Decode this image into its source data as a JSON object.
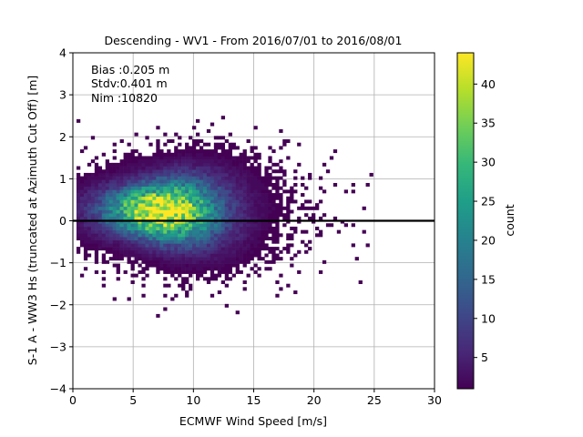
{
  "chart_data": {
    "type": "heatmap",
    "title": "Descending - WV1 - From 2016/07/01 to 2016/08/01",
    "xlabel": "ECMWF Wind Speed [m/s]",
    "ylabel": "S-1 A - WW3 Hs (truncated at Azimuth Cut Off) [m]",
    "xlim": [
      0,
      30
    ],
    "ylim": [
      -4,
      4
    ],
    "xticks": [
      "0",
      "5",
      "10",
      "15",
      "20",
      "25",
      "30"
    ],
    "yticks": [
      "−4",
      "−3",
      "−2",
      "−1",
      "0",
      "1",
      "2",
      "3",
      "4"
    ],
    "grid": true,
    "reference_line_y": 0,
    "annotations": [
      "Bias :0.205 m",
      "Stdv:0.401 m",
      "Nim :10820"
    ],
    "colorbar": {
      "label": "count",
      "colormap": "viridis",
      "range": [
        1,
        44
      ],
      "ticks": [
        "5",
        "10",
        "15",
        "20",
        "25",
        "30",
        "35",
        "40"
      ]
    },
    "density_model": {
      "peak_count": 44,
      "peak_x": 7.2,
      "peak_y": 0.2,
      "x_spread": 3.2,
      "y_spread": 0.4,
      "x_range": [
        0.3,
        27.5
      ],
      "y_range": [
        -2.7,
        2.75
      ]
    }
  },
  "colors": {
    "background": "#ffffff",
    "grid": "#b0b0b0",
    "zero_line": "#000000",
    "viridis_stops": [
      "#440154",
      "#482878",
      "#3e4989",
      "#31688e",
      "#26828e",
      "#1f9e89",
      "#35b779",
      "#6ece58",
      "#b5de2b",
      "#fde725"
    ]
  }
}
